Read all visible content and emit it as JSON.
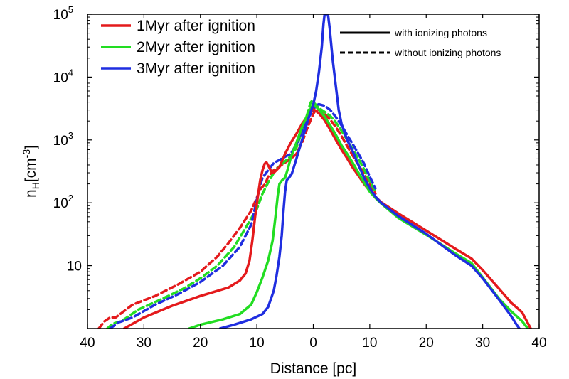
{
  "chart_data": {
    "type": "line",
    "title": "",
    "xlabel": "Distance [pc]",
    "ylabel_main": "n",
    "ylabel_sub": "H",
    "ylabel_unit_pre": "[cm",
    "ylabel_unit_sup": "-3",
    "ylabel_unit_post": "]",
    "xlim": [
      -40,
      40
    ],
    "ylim": [
      1,
      100000
    ],
    "yscale": "log",
    "x_ticks": [
      -40,
      -30,
      -20,
      -10,
      0,
      10,
      20,
      30,
      40
    ],
    "x_tick_labels": [
      "40",
      "30",
      "20",
      "10",
      "0",
      "10",
      "20",
      "30",
      "40"
    ],
    "y_ticks": [
      {
        "value": 10,
        "base": "10",
        "exp": ""
      },
      {
        "value": 100,
        "base": "10",
        "exp": "2"
      },
      {
        "value": 1000,
        "base": "10",
        "exp": "3"
      },
      {
        "value": 10000,
        "base": "10",
        "exp": "4"
      },
      {
        "value": 100000,
        "base": "10",
        "exp": "5"
      }
    ],
    "legend_placement": "top-left",
    "style_legend": {
      "placement": "top-right",
      "solid_label": "with ionizing photons",
      "dashed_label": "without ionizing photons"
    },
    "series": [
      {
        "name": "1Myr after ignition",
        "color": "#e41a1c",
        "style": "solid",
        "points": [
          [
            -33.5,
            1
          ],
          [
            -30,
            1.5
          ],
          [
            -25,
            2.3
          ],
          [
            -20,
            3.3
          ],
          [
            -15,
            4.5
          ],
          [
            -13,
            5.8
          ],
          [
            -12,
            7.5
          ],
          [
            -11.3,
            12
          ],
          [
            -10.8,
            25
          ],
          [
            -10.3,
            60
          ],
          [
            -9.8,
            130
          ],
          [
            -9.4,
            230
          ],
          [
            -9,
            330
          ],
          [
            -8.6,
            420
          ],
          [
            -8.3,
            440
          ],
          [
            -7.9,
            380
          ],
          [
            -7.5,
            320
          ],
          [
            -7,
            300
          ],
          [
            -6,
            370
          ],
          [
            -5,
            600
          ],
          [
            -4,
            900
          ],
          [
            -3,
            1250
          ],
          [
            -2,
            1800
          ],
          [
            -1,
            2400
          ],
          [
            0,
            3100
          ],
          [
            1,
            2650
          ],
          [
            2,
            2050
          ],
          [
            3,
            1450
          ],
          [
            4,
            1000
          ],
          [
            5,
            700
          ],
          [
            6,
            510
          ],
          [
            7,
            360
          ],
          [
            8,
            270
          ],
          [
            9,
            200
          ],
          [
            10,
            155
          ],
          [
            11,
            125
          ],
          [
            12,
            102
          ],
          [
            15,
            68
          ],
          [
            20,
            36
          ],
          [
            25,
            19
          ],
          [
            28,
            13
          ],
          [
            30,
            8.5
          ],
          [
            33,
            4.2
          ],
          [
            35,
            2.6
          ],
          [
            37,
            1.8
          ],
          [
            38.5,
            1
          ]
        ]
      },
      {
        "name": "2Myr after ignition",
        "color": "#22dd22",
        "style": "solid",
        "points": [
          [
            -22,
            1
          ],
          [
            -20,
            1.15
          ],
          [
            -16,
            1.4
          ],
          [
            -13,
            1.7
          ],
          [
            -11,
            2.4
          ],
          [
            -10,
            3.8
          ],
          [
            -9,
            6.5
          ],
          [
            -8,
            12
          ],
          [
            -7.2,
            25
          ],
          [
            -6.7,
            60
          ],
          [
            -6.3,
            130
          ],
          [
            -6,
            200
          ],
          [
            -5.5,
            230
          ],
          [
            -5,
            250
          ],
          [
            -4.5,
            350
          ],
          [
            -4,
            520
          ],
          [
            -3,
            900
          ],
          [
            -2,
            1600
          ],
          [
            -1,
            2600
          ],
          [
            0,
            3700
          ],
          [
            1,
            3050
          ],
          [
            2,
            2350
          ],
          [
            3,
            1700
          ],
          [
            4,
            1200
          ],
          [
            5,
            820
          ],
          [
            6,
            600
          ],
          [
            7,
            430
          ],
          [
            8,
            300
          ],
          [
            9,
            210
          ],
          [
            10,
            150
          ],
          [
            11,
            120
          ],
          [
            12,
            98
          ],
          [
            15,
            58
          ],
          [
            20,
            31
          ],
          [
            25,
            16
          ],
          [
            28,
            11
          ],
          [
            30,
            6.5
          ],
          [
            33,
            2.9
          ],
          [
            35,
            1.9
          ],
          [
            37,
            1.3
          ],
          [
            38,
            1
          ]
        ]
      },
      {
        "name": "3Myr after ignition",
        "color": "#1f2ee0",
        "style": "solid",
        "points": [
          [
            -16.5,
            1
          ],
          [
            -14,
            1.15
          ],
          [
            -11,
            1.4
          ],
          [
            -9,
            1.7
          ],
          [
            -8,
            2.2
          ],
          [
            -7,
            4
          ],
          [
            -6.5,
            7
          ],
          [
            -6,
            14
          ],
          [
            -5.6,
            30
          ],
          [
            -5.3,
            70
          ],
          [
            -5,
            150
          ],
          [
            -4.7,
            230
          ],
          [
            -4.3,
            250
          ],
          [
            -3.8,
            290
          ],
          [
            -3,
            500
          ],
          [
            -2,
            1000
          ],
          [
            -1,
            2000
          ],
          [
            0,
            3700
          ],
          [
            0.5,
            6000
          ],
          [
            1,
            12000
          ],
          [
            1.5,
            30000
          ],
          [
            1.8,
            70000
          ],
          [
            2,
            100000
          ],
          [
            2.6,
            100000
          ],
          [
            2.9,
            60000
          ],
          [
            3.4,
            20000
          ],
          [
            4,
            7000
          ],
          [
            4.5,
            3000
          ],
          [
            5,
            1800
          ],
          [
            6,
            1000
          ],
          [
            7,
            650
          ],
          [
            8,
            400
          ],
          [
            9,
            250
          ],
          [
            10,
            170
          ],
          [
            11,
            125
          ],
          [
            12,
            100
          ],
          [
            15,
            62
          ],
          [
            20,
            32
          ],
          [
            25,
            15
          ],
          [
            28,
            10
          ],
          [
            30,
            6.3
          ],
          [
            33,
            2.8
          ],
          [
            35,
            1.6
          ],
          [
            36,
            1.15
          ],
          [
            36.5,
            1
          ]
        ]
      },
      {
        "name": "1Myr after ignition",
        "color": "#e41a1c",
        "style": "dashed",
        "points": [
          [
            -38,
            1
          ],
          [
            -37,
            1.3
          ],
          [
            -36,
            1.5
          ],
          [
            -35,
            1.5
          ],
          [
            -32,
            2.4
          ],
          [
            -28,
            3.3
          ],
          [
            -24,
            5
          ],
          [
            -20,
            8
          ],
          [
            -17,
            14
          ],
          [
            -15,
            23
          ],
          [
            -13,
            40
          ],
          [
            -11,
            75
          ],
          [
            -10,
            120
          ],
          [
            -9.5,
            160
          ],
          [
            -9,
            180
          ],
          [
            -8.5,
            200
          ],
          [
            -8,
            260
          ],
          [
            -7,
            330
          ],
          [
            -6,
            380
          ],
          [
            -4,
            500
          ],
          [
            -3,
            600
          ],
          [
            -2,
            900
          ],
          [
            -1,
            1600
          ],
          [
            0,
            2600
          ],
          [
            0.5,
            3100
          ],
          [
            1,
            3000
          ],
          [
            2,
            2600
          ],
          [
            3,
            2100
          ],
          [
            4,
            1600
          ],
          [
            5,
            1150
          ],
          [
            6,
            800
          ],
          [
            7,
            560
          ],
          [
            8,
            400
          ],
          [
            9,
            290
          ],
          [
            10,
            200
          ],
          [
            11,
            140
          ]
        ]
      },
      {
        "name": "2Myr after ignition",
        "color": "#22dd22",
        "style": "dashed",
        "points": [
          [
            -36.5,
            1
          ],
          [
            -35.5,
            1.2
          ],
          [
            -34,
            1.3
          ],
          [
            -31,
            2
          ],
          [
            -27,
            2.9
          ],
          [
            -23,
            4.3
          ],
          [
            -20,
            6.3
          ],
          [
            -17,
            10
          ],
          [
            -14,
            20
          ],
          [
            -12,
            40
          ],
          [
            -10,
            80
          ],
          [
            -9,
            140
          ],
          [
            -8,
            210
          ],
          [
            -7,
            300
          ],
          [
            -6,
            380
          ],
          [
            -4,
            550
          ],
          [
            -3,
            750
          ],
          [
            -2,
            1400
          ],
          [
            -1,
            2700
          ],
          [
            -0.5,
            3900
          ],
          [
            -0.2,
            4200
          ],
          [
            0,
            4000
          ],
          [
            1,
            3200
          ],
          [
            2,
            2800
          ],
          [
            3,
            2400
          ],
          [
            4,
            1900
          ],
          [
            5,
            1400
          ],
          [
            6,
            1000
          ],
          [
            7,
            700
          ],
          [
            8,
            500
          ],
          [
            9,
            340
          ],
          [
            10,
            220
          ],
          [
            11,
            150
          ]
        ]
      },
      {
        "name": "3Myr after ignition",
        "color": "#1f2ee0",
        "style": "dashed",
        "points": [
          [
            -36,
            1
          ],
          [
            -34.5,
            1.25
          ],
          [
            -32,
            1.5
          ],
          [
            -28,
            2.4
          ],
          [
            -24,
            3.5
          ],
          [
            -20,
            5.5
          ],
          [
            -16,
            10
          ],
          [
            -13,
            20
          ],
          [
            -11,
            45
          ],
          [
            -10,
            110
          ],
          [
            -9.5,
            180
          ],
          [
            -9,
            250
          ],
          [
            -8,
            330
          ],
          [
            -7,
            430
          ],
          [
            -6,
            480
          ],
          [
            -5,
            540
          ],
          [
            -4,
            600
          ],
          [
            -3,
            850
          ],
          [
            -2,
            1350
          ],
          [
            -1,
            2200
          ],
          [
            0,
            3000
          ],
          [
            0.5,
            3600
          ],
          [
            1,
            3700
          ],
          [
            2,
            3500
          ],
          [
            3,
            3000
          ],
          [
            4,
            2300
          ],
          [
            5,
            1700
          ],
          [
            6,
            1200
          ],
          [
            7,
            850
          ],
          [
            8,
            600
          ],
          [
            9,
            420
          ],
          [
            10,
            260
          ],
          [
            11,
            170
          ]
        ]
      }
    ]
  }
}
